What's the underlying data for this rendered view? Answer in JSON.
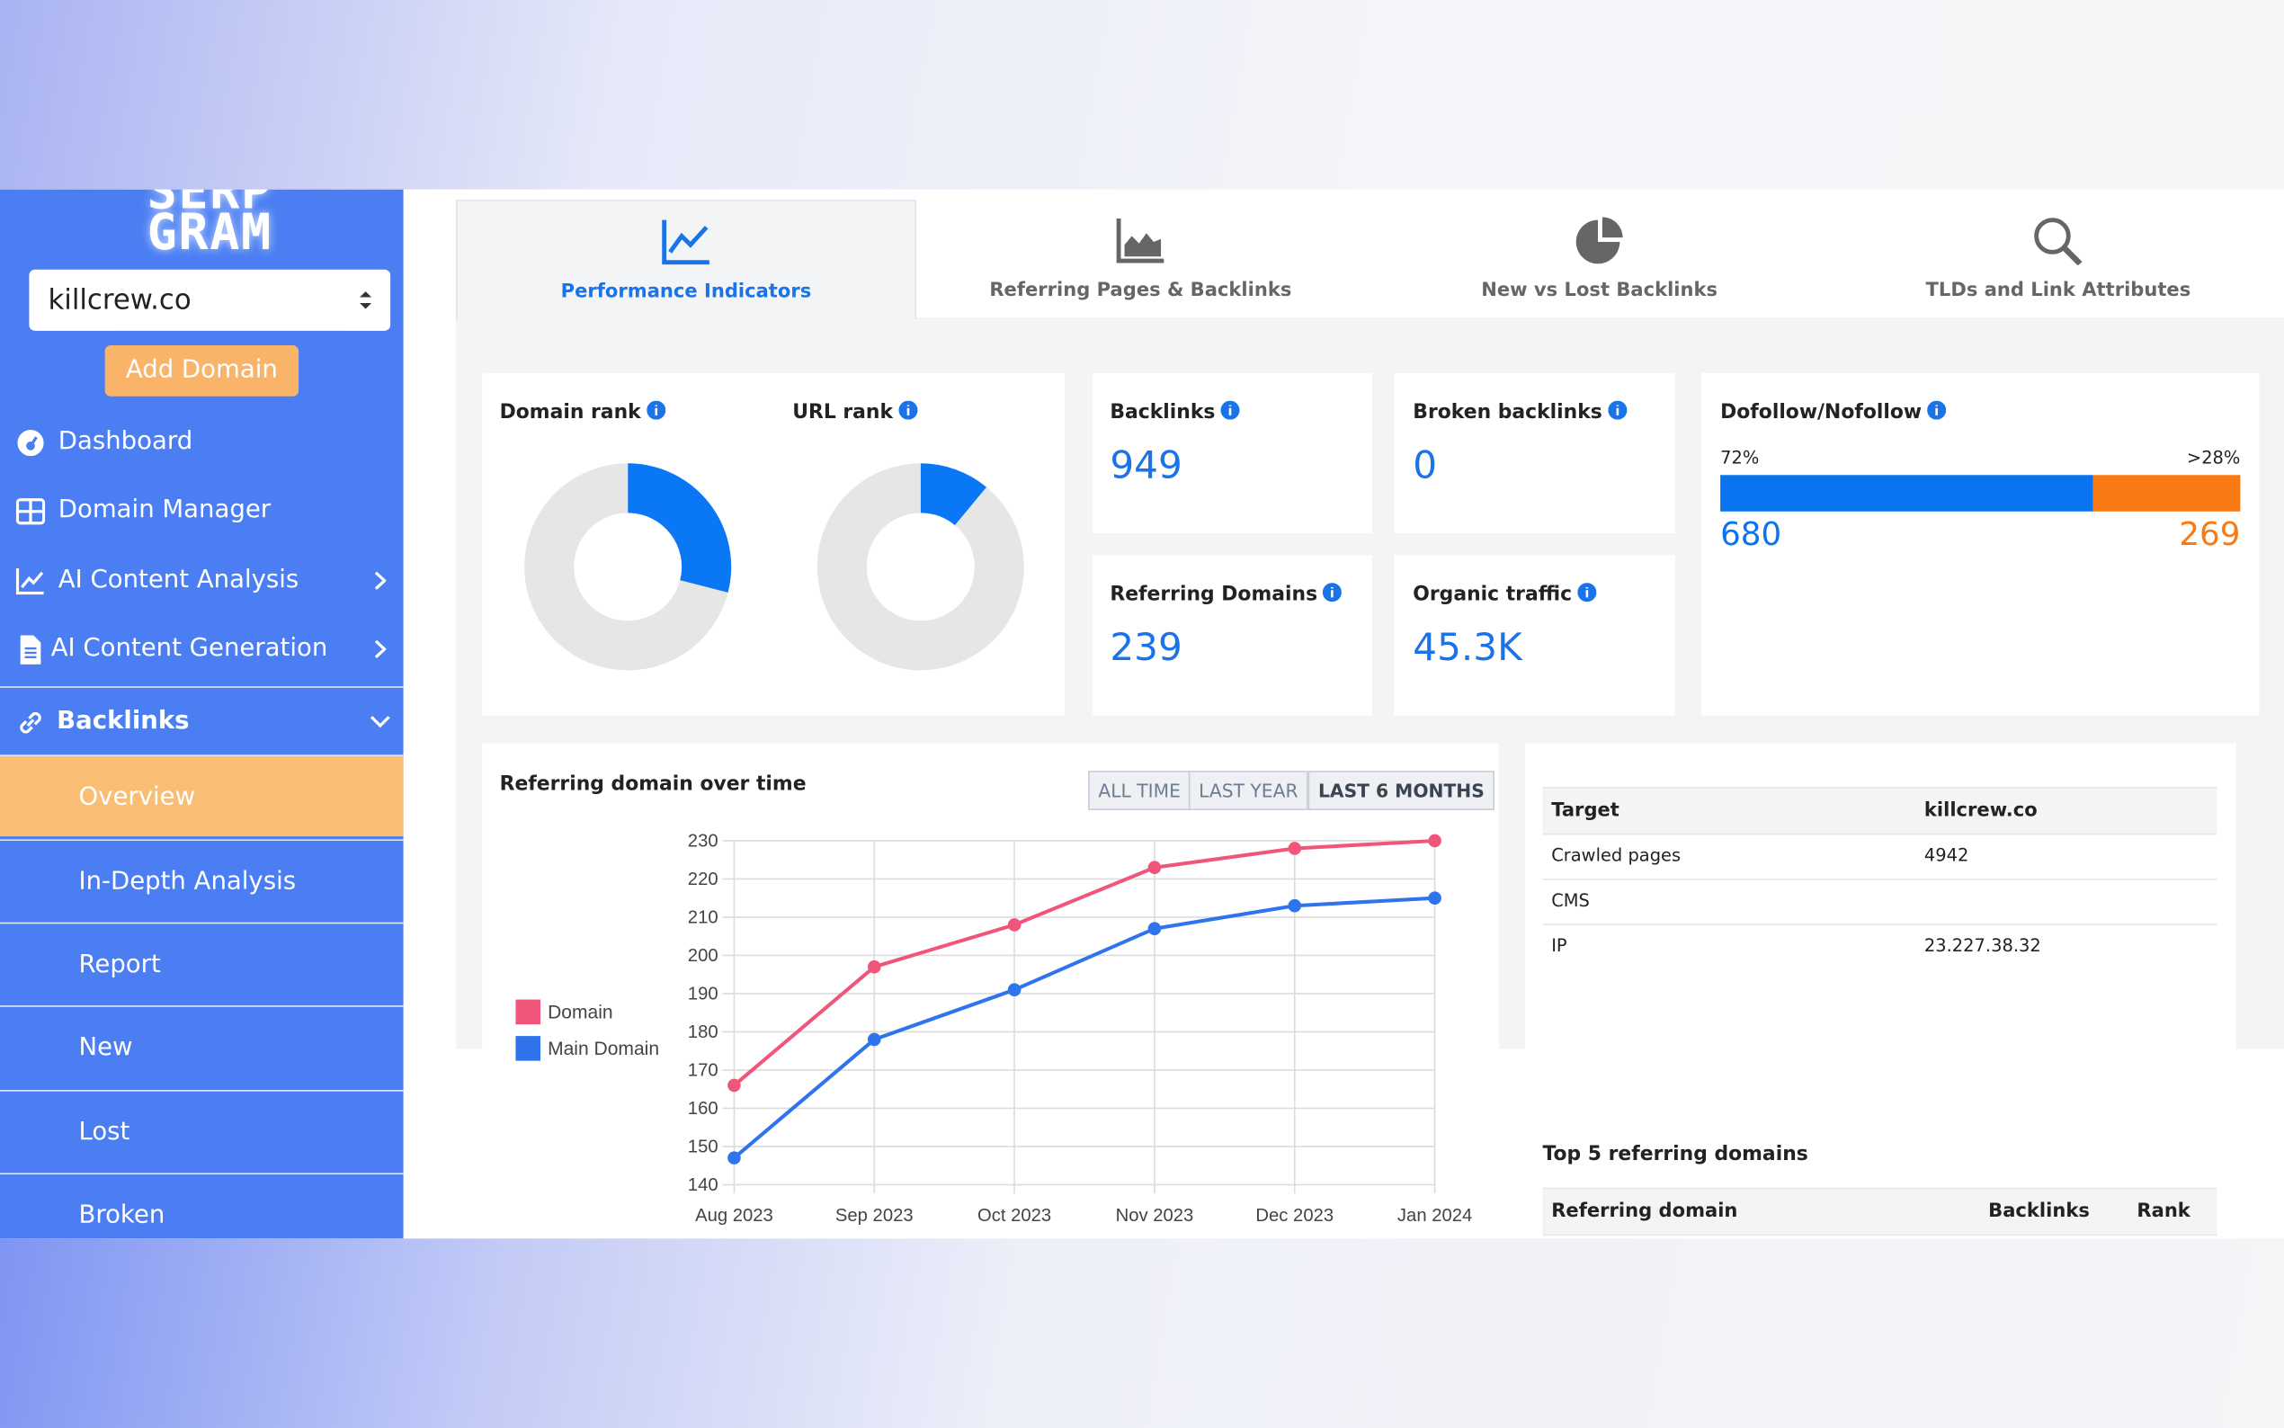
{
  "brand": {
    "logo_top": "SERP",
    "logo_bottom": "GRAM"
  },
  "sidebar": {
    "domain_select": "killcrew.co",
    "add_domain": "Add Domain",
    "menu": [
      "Dashboard",
      "Domain Manager",
      "AI Content Analysis",
      "AI Content Generation",
      "Backlinks"
    ],
    "submenu": [
      "Overview",
      "In-Depth Analysis",
      "Report",
      "New",
      "Lost",
      "Broken"
    ]
  },
  "tabs": [
    "Performance Indicators",
    "Referring Pages & Backlinks",
    "New vs Lost Backlinks",
    "TLDs and Link Attributes"
  ],
  "metrics": [
    {
      "label": "Backlinks",
      "value": "949"
    },
    {
      "label": "Broken backlinks",
      "value": "0"
    },
    {
      "label": "Referring Domains",
      "value": "239"
    },
    {
      "label": "Organic traffic",
      "value": "45.3K"
    }
  ],
  "time_filters": [
    "ALL TIME",
    "LAST YEAR",
    "LAST 6 MONTHS"
  ],
  "site_info": {
    "header": [
      "Target",
      "killcrew.co"
    ],
    "rows": [
      [
        "Crawled pages",
        "4942"
      ],
      [
        "CMS"
      ],
      [
        "IP",
        "23.227.38.32"
      ]
    ]
  },
  "top_referring": {
    "title": "Top 5 referring domains",
    "columns": [
      "Referring domain",
      "Backlinks",
      "Rank"
    ]
  },
  "chart_data": [
    {
      "type": "donut",
      "title": "Domain rank",
      "values": [
        29,
        71
      ],
      "colors": [
        "#0a78f5",
        "#e6e6e6"
      ]
    },
    {
      "type": "donut",
      "title": "URL rank",
      "values": [
        11,
        89
      ],
      "colors": [
        "#0a78f5",
        "#e6e6e6"
      ]
    },
    {
      "type": "line",
      "title": "Referring domain over time",
      "categories": [
        "Aug 2023",
        "Sep 2023",
        "Oct 2023",
        "Nov 2023",
        "Dec 2023",
        "Jan 2024"
      ],
      "series": [
        {
          "name": "Domain",
          "color": "#f0567a",
          "values": [
            166,
            197,
            208,
            223,
            228,
            230
          ]
        },
        {
          "name": "Main Domain",
          "color": "#2f74ec",
          "values": [
            147,
            178,
            191,
            207,
            213,
            215
          ]
        }
      ],
      "ylim": [
        140,
        230
      ],
      "yticks": [
        140,
        150,
        160,
        170,
        180,
        190,
        200,
        210,
        220,
        230
      ],
      "grid": true,
      "legend": "left"
    },
    {
      "type": "stacked-bar",
      "title": "Dofollow/Nofollow",
      "values": [
        680,
        269
      ],
      "percent_labels": [
        "72%",
        ">28%"
      ],
      "colors": [
        "#0a74f0",
        "#f97a12"
      ]
    }
  ]
}
